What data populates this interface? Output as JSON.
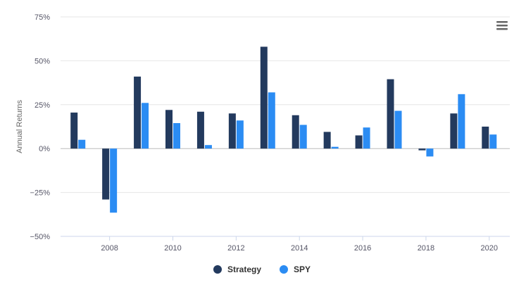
{
  "chart_data": {
    "type": "bar",
    "ylabel": "Annual Returns",
    "ylim": [
      -50,
      75
    ],
    "yticks": [
      -50,
      -25,
      0,
      25,
      50,
      75
    ],
    "ytick_labels": [
      "−50%",
      "−25%",
      "0%",
      "25%",
      "50%",
      "75%"
    ],
    "xlim": [
      2006.45,
      2020.65
    ],
    "xticks": [
      2008,
      2010,
      2012,
      2014,
      2016,
      2018,
      2020
    ],
    "xtick_labels": [
      "2008",
      "2010",
      "2012",
      "2014",
      "2016",
      "2018",
      "2020"
    ],
    "categories": [
      2007,
      2008,
      2009,
      2010,
      2011,
      2012,
      2013,
      2014,
      2015,
      2016,
      2017,
      2018,
      2019,
      2020
    ],
    "series": [
      {
        "name": "Strategy",
        "color": "#233a5e",
        "values": [
          20.5,
          -29,
          41,
          22,
          21,
          20,
          58,
          19,
          9.5,
          7.5,
          39.5,
          -1,
          20,
          12.5
        ]
      },
      {
        "name": "SPY",
        "color": "#2b8cf3",
        "values": [
          5,
          -36.5,
          26,
          14.5,
          2,
          16,
          32,
          13.5,
          1,
          12,
          21.5,
          -4.5,
          31,
          8
        ]
      }
    ],
    "grid": true,
    "legend_position": "bottom-center"
  },
  "menu": {
    "icon": "hamburger-menu-icon"
  }
}
